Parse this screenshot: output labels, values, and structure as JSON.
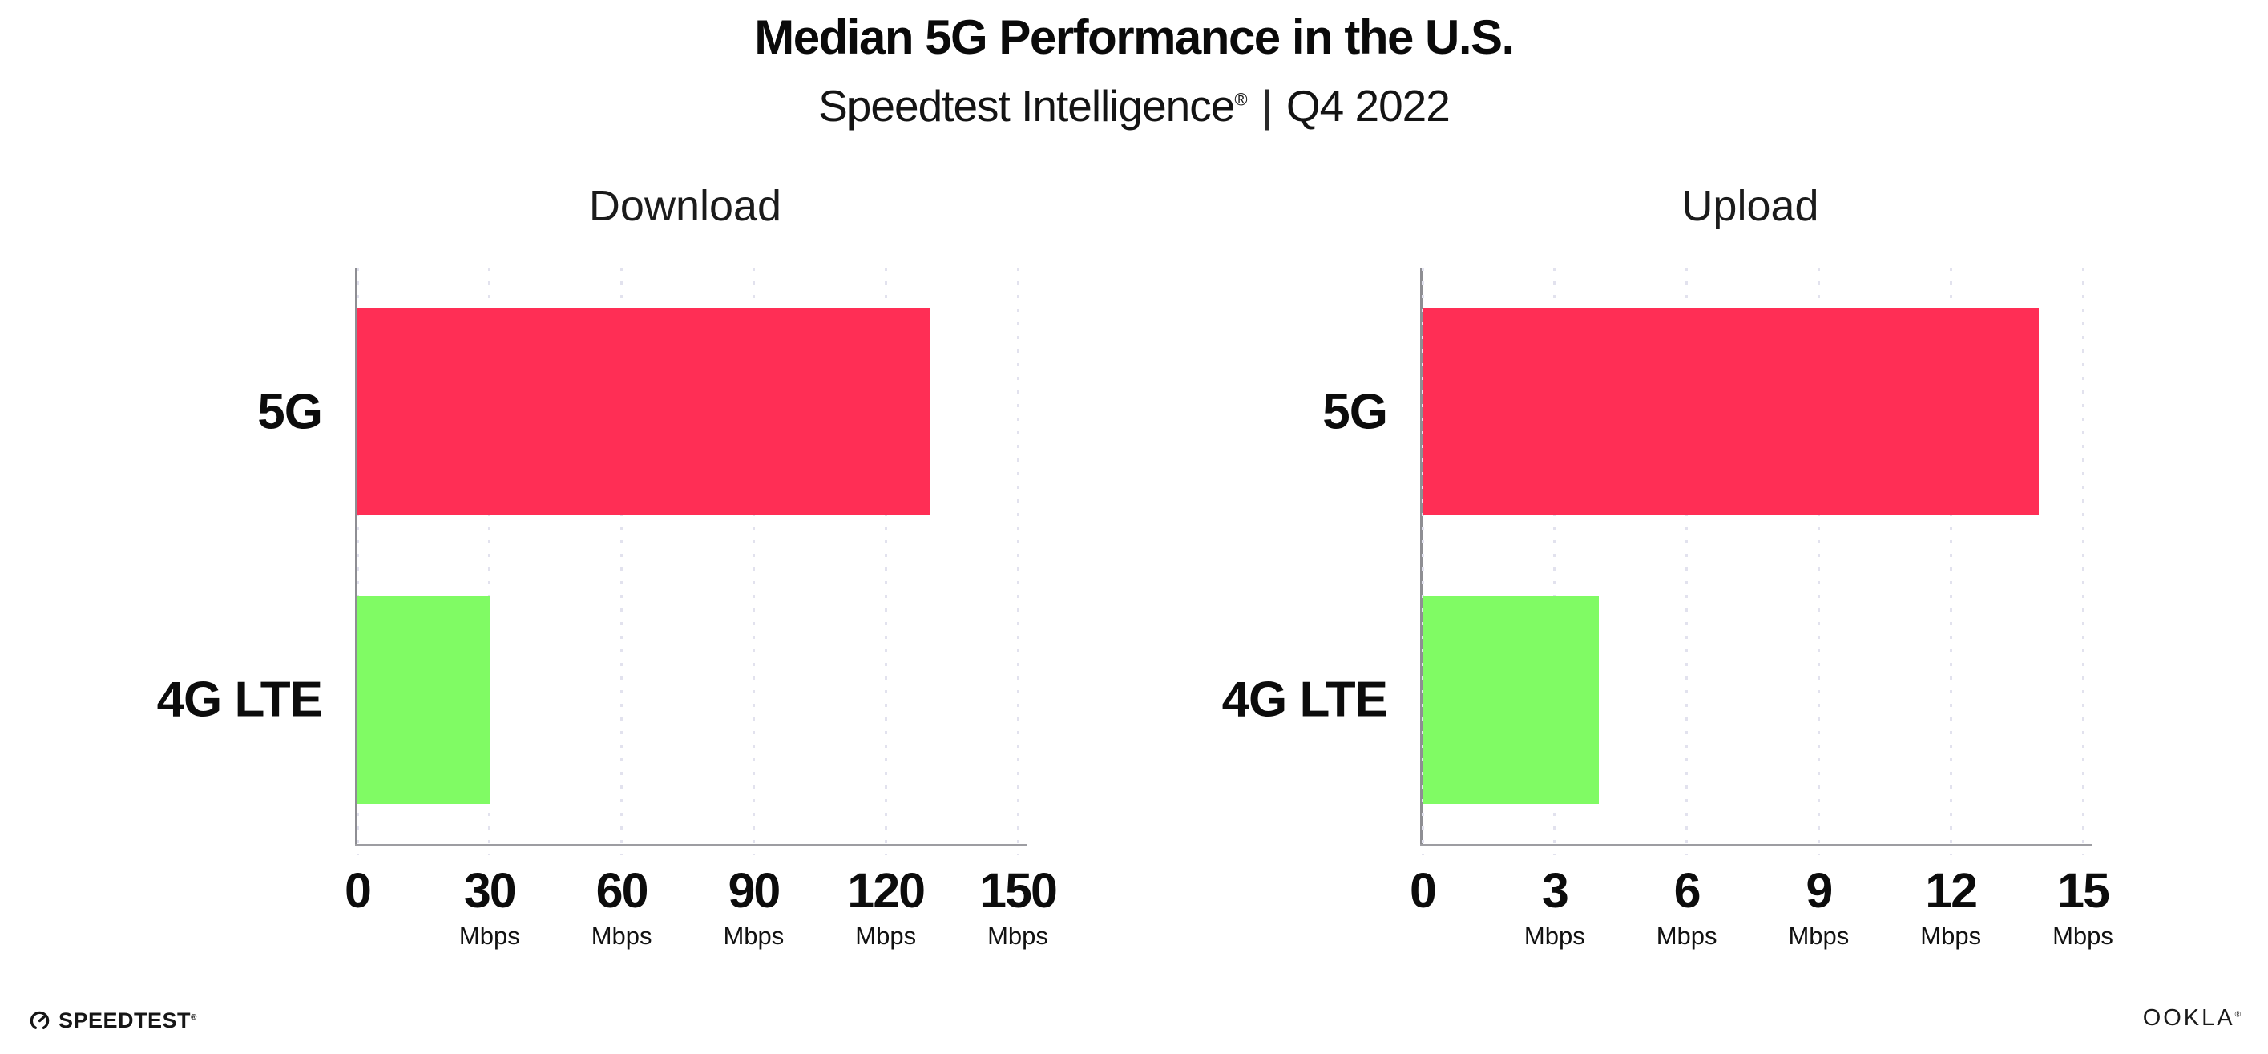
{
  "header": {
    "title": "Median 5G Performance in the U.S.",
    "subtitle_product": "Speedtest Intelligence",
    "subtitle_reg": "®",
    "subtitle_separator": "|",
    "subtitle_period": "Q4 2022"
  },
  "chart_data": [
    {
      "type": "bar",
      "orientation": "horizontal",
      "title": "Download",
      "categories": [
        "5G",
        "4G LTE"
      ],
      "values": [
        130,
        30
      ],
      "unit": "Mbps",
      "xlim": [
        0,
        150
      ],
      "xticks": [
        0,
        30,
        60,
        90,
        120,
        150
      ],
      "grid": "vertical-dotted",
      "legend": "none",
      "bar_colors": [
        "#ff2e55",
        "#80fb64"
      ]
    },
    {
      "type": "bar",
      "orientation": "horizontal",
      "title": "Upload",
      "categories": [
        "5G",
        "4G LTE"
      ],
      "values": [
        14,
        4
      ],
      "unit": "Mbps",
      "xlim": [
        0,
        15
      ],
      "xticks": [
        0,
        3,
        6,
        9,
        12,
        15
      ],
      "grid": "vertical-dotted",
      "legend": "none",
      "bar_colors": [
        "#ff2e55",
        "#80fb64"
      ]
    }
  ],
  "footer": {
    "speedtest_label": "SPEEDTEST",
    "speedtest_reg": "®",
    "ookla_label": "OOKLA",
    "ookla_reg": "®"
  },
  "colors": {
    "bar_5g": "#ff2e55",
    "bar_4g_lte": "#80fb64",
    "axis": "#8e8e93",
    "gridline": "#e2e2ee",
    "text": "#0c0c0c"
  }
}
